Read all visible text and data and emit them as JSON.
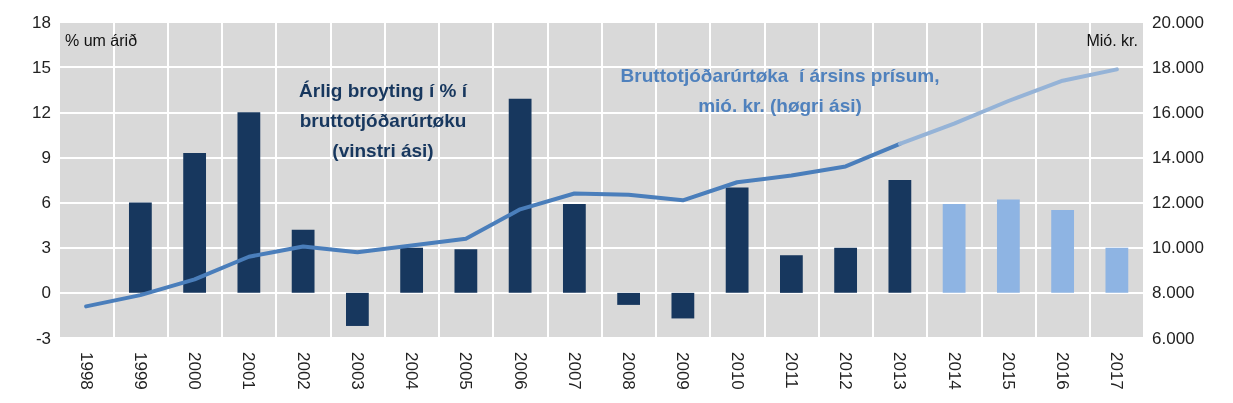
{
  "chart_data": {
    "type": "bar",
    "categories": [
      "1998",
      "1999",
      "2000",
      "2001",
      "2002",
      "2003",
      "2004",
      "2005",
      "2006",
      "2007",
      "2008",
      "2009",
      "2010",
      "2011",
      "2012",
      "2013",
      "2014",
      "2015",
      "2016",
      "2017"
    ],
    "series": [
      {
        "values": [
          null,
          6.0,
          9.3,
          12.0,
          4.2,
          -2.2,
          3.0,
          2.9,
          12.9,
          5.9,
          -0.8,
          -1.7,
          7.0,
          2.5,
          3.0,
          7.5,
          5.9,
          6.2,
          5.5,
          3.0
        ],
        "colors": [
          "#17375e",
          "#17375e",
          "#17375e",
          "#17375e",
          "#17375e",
          "#17375e",
          "#17375e",
          "#17375e",
          "#17375e",
          "#17375e",
          "#17375e",
          "#17375e",
          "#17375e",
          "#17375e",
          "#17375e",
          "#17375e",
          "#8eb4e3",
          "#8eb4e3",
          "#8eb4e3",
          "#8eb4e3"
        ]
      },
      {
        "type": "line",
        "axis": "y2",
        "color": "#4a7ebb",
        "values": [
          7400,
          7900,
          8600,
          9600,
          10050,
          9800,
          10100,
          10400,
          11700,
          12400,
          12350,
          12100,
          12900,
          13200,
          13600,
          14600,
          null,
          null,
          null,
          null
        ]
      },
      {
        "type": "line",
        "axis": "y2",
        "color": "#95b3d7",
        "values": [
          null,
          null,
          null,
          null,
          null,
          null,
          null,
          null,
          null,
          null,
          null,
          null,
          null,
          null,
          null,
          14600,
          15500,
          16500,
          17400,
          17900
        ]
      }
    ],
    "ylabel": "% um árið",
    "y2label": "Mió. kr.",
    "ylim": [
      -3,
      18
    ],
    "yticks": [
      -3,
      0,
      3,
      6,
      9,
      12,
      15,
      18
    ],
    "y2lim": [
      6000,
      20000
    ],
    "y2ticks": [
      {
        "value": 6000,
        "label": "6.000"
      },
      {
        "value": 8000,
        "label": "8.000"
      },
      {
        "value": 10000,
        "label": "10.000"
      },
      {
        "value": 12000,
        "label": "12.000"
      },
      {
        "value": 14000,
        "label": "14.000"
      },
      {
        "value": 16000,
        "label": "16.000"
      },
      {
        "value": 18000,
        "label": "18.000"
      },
      {
        "value": 20000,
        "label": "20.000"
      }
    ],
    "annotations": [
      "Árlig broyting í % í\nbruttotjóðarúrtøku\n(vinstri ási)",
      "Bruttotjóðarúrtøka  í ársins prísum,\nmió. kr. (høgri ási)"
    ],
    "grid": true,
    "marker": "none",
    "line_style": "solid"
  }
}
